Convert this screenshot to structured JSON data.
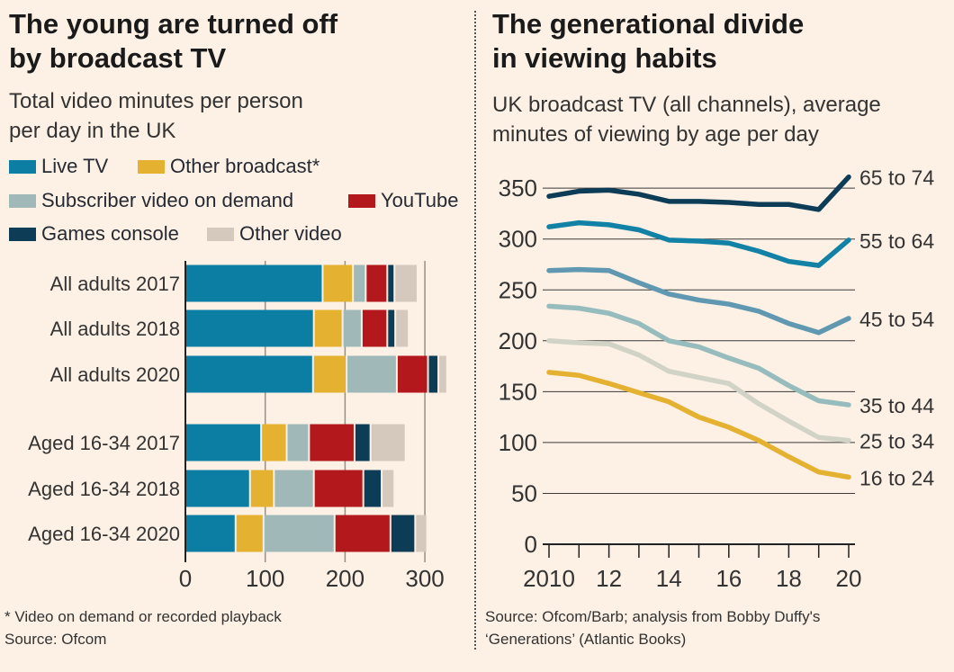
{
  "left": {
    "title_line1": "The young are turned off",
    "title_line2": "by broadcast TV",
    "subtitle_line1": "Total video minutes per person",
    "subtitle_line2": "per day in the UK",
    "footnote": "* Video on demand or recorded playback",
    "source": "Source: Ofcom"
  },
  "right": {
    "title_line1": "The generational divide",
    "title_line2": "in viewing habits",
    "subtitle_line1": "UK broadcast TV (all channels), average",
    "subtitle_line2": "minutes of viewing by age per day",
    "source_line1": "Source: Ofcom/Barb; analysis from Bobby Duffy's",
    "source_line2": "‘Generations’ (Atlantic Books)"
  },
  "chart_data": [
    {
      "type": "bar",
      "orientation": "horizontal-stacked",
      "title": "The young are turned off by broadcast TV",
      "xlabel": "Total video minutes per person per day",
      "xlim": [
        0,
        340
      ],
      "xticks": [
        "0",
        "100",
        "200",
        "300"
      ],
      "categories": [
        "All adults 2017",
        "All adults 2018",
        "All adults 2020",
        "Aged 16-34 2017",
        "Aged 16-34 2018",
        "Aged 16-34 2020"
      ],
      "series": [
        {
          "name": "Live TV",
          "color": "#0d7ea3",
          "values": [
            173,
            162,
            161,
            96,
            82,
            64
          ]
        },
        {
          "name": "Other broadcast*",
          "color": "#e5b130",
          "values": [
            38,
            36,
            42,
            32,
            30,
            35
          ]
        },
        {
          "name": "Subscriber video on demand",
          "color": "#a0b9b8",
          "values": [
            16,
            24,
            63,
            28,
            50,
            89
          ]
        },
        {
          "name": "YouTube",
          "color": "#b3191c",
          "values": [
            27,
            32,
            39,
            57,
            62,
            70
          ]
        },
        {
          "name": "Games console",
          "color": "#0d3d56",
          "values": [
            9,
            10,
            13,
            20,
            23,
            31
          ]
        },
        {
          "name": "Other video",
          "color": "#d5c9bd",
          "values": [
            29,
            17,
            11,
            44,
            16,
            15
          ]
        }
      ]
    },
    {
      "type": "line",
      "title": "The generational divide in viewing habits",
      "ylabel": "Average minutes of viewing per day",
      "ylim": [
        0,
        350
      ],
      "yticks": [
        "0",
        "50",
        "100",
        "150",
        "200",
        "250",
        "300",
        "350"
      ],
      "x": [
        2010,
        2011,
        2012,
        2013,
        2014,
        2015,
        2016,
        2017,
        2018,
        2019,
        2020
      ],
      "xtick_labels": [
        "2010",
        "12",
        "14",
        "16",
        "18",
        "20"
      ],
      "series": [
        {
          "name": "65 to 74",
          "color": "#0d3d56",
          "values": [
            342,
            347,
            348,
            344,
            337,
            337,
            336,
            334,
            334,
            329,
            361
          ]
        },
        {
          "name": "55 to 64",
          "color": "#1181a5",
          "values": [
            312,
            316,
            314,
            309,
            299,
            298,
            296,
            288,
            278,
            274,
            299
          ]
        },
        {
          "name": "45 to 54",
          "color": "#5f98b0",
          "values": [
            269,
            270,
            269,
            257,
            246,
            240,
            236,
            229,
            217,
            208,
            222
          ]
        },
        {
          "name": "35 to 44",
          "color": "#97bcbd",
          "values": [
            234,
            232,
            227,
            217,
            200,
            194,
            183,
            173,
            156,
            141,
            137
          ]
        },
        {
          "name": "25 to 34",
          "color": "#d2d3c7",
          "values": [
            200,
            198,
            197,
            186,
            170,
            164,
            158,
            138,
            121,
            105,
            102
          ]
        },
        {
          "name": "16 to 24",
          "color": "#e5b130",
          "values": [
            169,
            166,
            158,
            149,
            140,
            125,
            115,
            102,
            86,
            71,
            66
          ]
        }
      ]
    }
  ]
}
